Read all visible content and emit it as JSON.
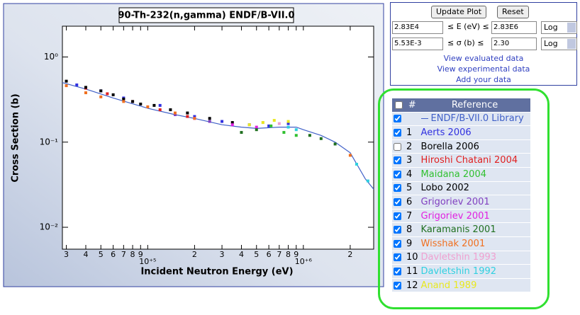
{
  "chart_data": {
    "type": "scatter",
    "title": "90-Th-232(n,gamma)  ENDF/B-VII.0",
    "x_label": "Incident Neutron Energy (eV)",
    "y_label": "Cross Section (b)",
    "x_log": true,
    "y_log": true,
    "xlim": [
      28300,
      2830000
    ],
    "ylim": [
      0.00553,
      2.3
    ],
    "xticks": [
      {
        "value": 30000,
        "label": "3"
      },
      {
        "value": 40000,
        "label": "4"
      },
      {
        "value": 50000,
        "label": "5"
      },
      {
        "value": 60000,
        "label": "6"
      },
      {
        "value": 70000,
        "label": "7"
      },
      {
        "value": 80000,
        "label": "8"
      },
      {
        "value": 90000,
        "label": "9"
      },
      {
        "value": 100000,
        "label": "10⁺⁵"
      },
      {
        "value": 200000,
        "label": "2"
      },
      {
        "value": 300000,
        "label": "3"
      },
      {
        "value": 400000,
        "label": "4"
      },
      {
        "value": 500000,
        "label": "5"
      },
      {
        "value": 600000,
        "label": "6"
      },
      {
        "value": 700000,
        "label": "7"
      },
      {
        "value": 800000,
        "label": "8"
      },
      {
        "value": 900000,
        "label": "9"
      },
      {
        "value": 1000000,
        "label": "10⁺⁶"
      },
      {
        "value": 2000000,
        "label": "2"
      }
    ],
    "yticks": [
      {
        "value": 0.01,
        "label": "10⁻²"
      },
      {
        "value": 0.1,
        "label": "10⁻¹"
      },
      {
        "value": 1,
        "label": "10⁰"
      }
    ],
    "series": [
      {
        "name": "ENDF/B-VII.0 Library",
        "style": "line",
        "checked": true,
        "color": "#4060c8",
        "x": [
          28300,
          40000,
          60000,
          100000,
          150000,
          200000,
          300000,
          400000,
          500000,
          700000,
          900000,
          1000000,
          1300000,
          1600000,
          2000000,
          2500000,
          2830000
        ],
        "values": [
          0.5,
          0.42,
          0.33,
          0.25,
          0.21,
          0.19,
          0.16,
          0.15,
          0.145,
          0.15,
          0.15,
          0.14,
          0.12,
          0.1,
          0.075,
          0.037,
          0.028
        ]
      },
      {
        "number": 1,
        "name": "Aerts 2006",
        "checked": true,
        "color": "#3030e0",
        "x": [
          35000,
          50000,
          70000,
          120000,
          200000,
          300000,
          450000,
          600000,
          800000
        ],
        "values": [
          0.47,
          0.4,
          0.33,
          0.27,
          0.2,
          0.175,
          0.16,
          0.155,
          0.165
        ]
      },
      {
        "number": 2,
        "name": "Borella 2006",
        "checked": false,
        "color": "#000000",
        "x": [],
        "values": []
      },
      {
        "number": 3,
        "name": "Hiroshi Chatani 2004",
        "checked": true,
        "color": "#e02020",
        "x": [
          40000,
          55000,
          80000,
          120000,
          180000
        ],
        "values": [
          0.43,
          0.37,
          0.3,
          0.24,
          0.2
        ]
      },
      {
        "number": 4,
        "name": "Maidana 2004",
        "checked": true,
        "color": "#30c030",
        "x": [
          620000,
          750000,
          900000
        ],
        "values": [
          0.155,
          0.13,
          0.12
        ]
      },
      {
        "number": 5,
        "name": "Lobo 2002",
        "checked": true,
        "color": "#000000",
        "x": [
          30000,
          40000,
          50000,
          60000,
          70000,
          80000,
          90000,
          110000,
          140000,
          180000,
          250000,
          350000
        ],
        "values": [
          0.52,
          0.44,
          0.4,
          0.36,
          0.32,
          0.3,
          0.28,
          0.27,
          0.24,
          0.22,
          0.19,
          0.17
        ]
      },
      {
        "number": 6,
        "name": "Grigoriev 2001",
        "checked": true,
        "color": "#8040c0",
        "x": [
          150000,
          250000
        ],
        "values": [
          0.21,
          0.175
        ]
      },
      {
        "number": 7,
        "name": "Grigoriev 2001",
        "checked": true,
        "color": "#e020e0",
        "x": [
          200000,
          350000,
          500000
        ],
        "values": [
          0.19,
          0.16,
          0.15
        ]
      },
      {
        "number": 8,
        "name": "Karamanis 2001",
        "checked": true,
        "color": "#207020",
        "x": [
          400000,
          500000,
          1100000,
          1300000,
          1600000
        ],
        "values": [
          0.13,
          0.14,
          0.12,
          0.11,
          0.095
        ]
      },
      {
        "number": 9,
        "name": "Wisshak 2001",
        "checked": true,
        "color": "#f07020",
        "x": [
          30000,
          40000,
          50000,
          70000,
          100000,
          150000,
          200000,
          2000000
        ],
        "values": [
          0.46,
          0.38,
          0.34,
          0.3,
          0.26,
          0.22,
          0.19,
          0.07
        ]
      },
      {
        "number": 10,
        "name": "Davletshin 1993",
        "checked": true,
        "color": "#f0a0d0",
        "x": [
          550000,
          700000
        ],
        "values": [
          0.17,
          0.165
        ]
      },
      {
        "number": 11,
        "name": "Davletshin 1992",
        "checked": true,
        "color": "#30d0e0",
        "x": [
          800000,
          900000,
          2200000,
          2600000
        ],
        "values": [
          0.15,
          0.14,
          0.055,
          0.035
        ]
      },
      {
        "number": 12,
        "name": "Anand 1989",
        "checked": true,
        "color": "#e8e820",
        "x": [
          450000,
          550000,
          650000,
          800000
        ],
        "values": [
          0.16,
          0.17,
          0.18,
          0.175
        ]
      }
    ]
  },
  "controls": {
    "update": "Update Plot",
    "reset": "Reset",
    "energy": {
      "min": "2.83E4",
      "label": "≤ E (eV) ≤",
      "max": "2.83E6",
      "scale": "Log"
    },
    "sigma": {
      "min": "5.53E-3",
      "label": "≤ σ (b) ≤",
      "max": "2.30",
      "scale": "Log"
    },
    "links": [
      "View evaluated data",
      "View experimental data",
      "Add your data"
    ]
  },
  "table": {
    "header": [
      "#",
      "Reference"
    ]
  }
}
